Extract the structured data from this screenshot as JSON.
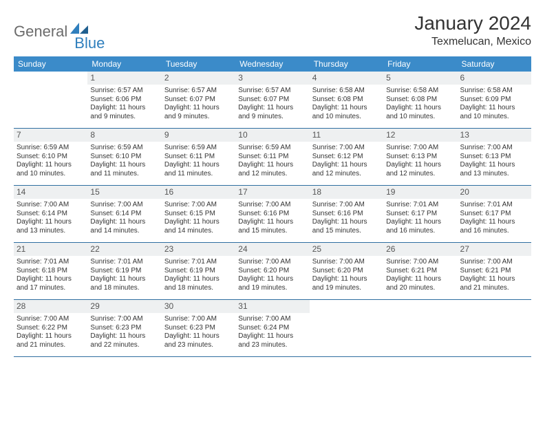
{
  "logo": {
    "text1": "General",
    "text2": "Blue"
  },
  "title": "January 2024",
  "location": "Texmelucan, Mexico",
  "colors": {
    "header_bg": "#3b8bc9",
    "rule": "#2e6ea0",
    "shade": "#eef0f1",
    "logo_gray": "#6b6b6b",
    "logo_blue": "#2f7fbd"
  },
  "dow": [
    "Sunday",
    "Monday",
    "Tuesday",
    "Wednesday",
    "Thursday",
    "Friday",
    "Saturday"
  ],
  "weeks": [
    [
      {
        "n": "",
        "sr": "",
        "ss": "",
        "d1": "",
        "d2": ""
      },
      {
        "n": "1",
        "sr": "Sunrise: 6:57 AM",
        "ss": "Sunset: 6:06 PM",
        "d1": "Daylight: 11 hours",
        "d2": "and 9 minutes."
      },
      {
        "n": "2",
        "sr": "Sunrise: 6:57 AM",
        "ss": "Sunset: 6:07 PM",
        "d1": "Daylight: 11 hours",
        "d2": "and 9 minutes."
      },
      {
        "n": "3",
        "sr": "Sunrise: 6:57 AM",
        "ss": "Sunset: 6:07 PM",
        "d1": "Daylight: 11 hours",
        "d2": "and 9 minutes."
      },
      {
        "n": "4",
        "sr": "Sunrise: 6:58 AM",
        "ss": "Sunset: 6:08 PM",
        "d1": "Daylight: 11 hours",
        "d2": "and 10 minutes."
      },
      {
        "n": "5",
        "sr": "Sunrise: 6:58 AM",
        "ss": "Sunset: 6:08 PM",
        "d1": "Daylight: 11 hours",
        "d2": "and 10 minutes."
      },
      {
        "n": "6",
        "sr": "Sunrise: 6:58 AM",
        "ss": "Sunset: 6:09 PM",
        "d1": "Daylight: 11 hours",
        "d2": "and 10 minutes."
      }
    ],
    [
      {
        "n": "7",
        "sr": "Sunrise: 6:59 AM",
        "ss": "Sunset: 6:10 PM",
        "d1": "Daylight: 11 hours",
        "d2": "and 10 minutes."
      },
      {
        "n": "8",
        "sr": "Sunrise: 6:59 AM",
        "ss": "Sunset: 6:10 PM",
        "d1": "Daylight: 11 hours",
        "d2": "and 11 minutes."
      },
      {
        "n": "9",
        "sr": "Sunrise: 6:59 AM",
        "ss": "Sunset: 6:11 PM",
        "d1": "Daylight: 11 hours",
        "d2": "and 11 minutes."
      },
      {
        "n": "10",
        "sr": "Sunrise: 6:59 AM",
        "ss": "Sunset: 6:11 PM",
        "d1": "Daylight: 11 hours",
        "d2": "and 12 minutes."
      },
      {
        "n": "11",
        "sr": "Sunrise: 7:00 AM",
        "ss": "Sunset: 6:12 PM",
        "d1": "Daylight: 11 hours",
        "d2": "and 12 minutes."
      },
      {
        "n": "12",
        "sr": "Sunrise: 7:00 AM",
        "ss": "Sunset: 6:13 PM",
        "d1": "Daylight: 11 hours",
        "d2": "and 12 minutes."
      },
      {
        "n": "13",
        "sr": "Sunrise: 7:00 AM",
        "ss": "Sunset: 6:13 PM",
        "d1": "Daylight: 11 hours",
        "d2": "and 13 minutes."
      }
    ],
    [
      {
        "n": "14",
        "sr": "Sunrise: 7:00 AM",
        "ss": "Sunset: 6:14 PM",
        "d1": "Daylight: 11 hours",
        "d2": "and 13 minutes."
      },
      {
        "n": "15",
        "sr": "Sunrise: 7:00 AM",
        "ss": "Sunset: 6:14 PM",
        "d1": "Daylight: 11 hours",
        "d2": "and 14 minutes."
      },
      {
        "n": "16",
        "sr": "Sunrise: 7:00 AM",
        "ss": "Sunset: 6:15 PM",
        "d1": "Daylight: 11 hours",
        "d2": "and 14 minutes."
      },
      {
        "n": "17",
        "sr": "Sunrise: 7:00 AM",
        "ss": "Sunset: 6:16 PM",
        "d1": "Daylight: 11 hours",
        "d2": "and 15 minutes."
      },
      {
        "n": "18",
        "sr": "Sunrise: 7:00 AM",
        "ss": "Sunset: 6:16 PM",
        "d1": "Daylight: 11 hours",
        "d2": "and 15 minutes."
      },
      {
        "n": "19",
        "sr": "Sunrise: 7:01 AM",
        "ss": "Sunset: 6:17 PM",
        "d1": "Daylight: 11 hours",
        "d2": "and 16 minutes."
      },
      {
        "n": "20",
        "sr": "Sunrise: 7:01 AM",
        "ss": "Sunset: 6:17 PM",
        "d1": "Daylight: 11 hours",
        "d2": "and 16 minutes."
      }
    ],
    [
      {
        "n": "21",
        "sr": "Sunrise: 7:01 AM",
        "ss": "Sunset: 6:18 PM",
        "d1": "Daylight: 11 hours",
        "d2": "and 17 minutes."
      },
      {
        "n": "22",
        "sr": "Sunrise: 7:01 AM",
        "ss": "Sunset: 6:19 PM",
        "d1": "Daylight: 11 hours",
        "d2": "and 18 minutes."
      },
      {
        "n": "23",
        "sr": "Sunrise: 7:01 AM",
        "ss": "Sunset: 6:19 PM",
        "d1": "Daylight: 11 hours",
        "d2": "and 18 minutes."
      },
      {
        "n": "24",
        "sr": "Sunrise: 7:00 AM",
        "ss": "Sunset: 6:20 PM",
        "d1": "Daylight: 11 hours",
        "d2": "and 19 minutes."
      },
      {
        "n": "25",
        "sr": "Sunrise: 7:00 AM",
        "ss": "Sunset: 6:20 PM",
        "d1": "Daylight: 11 hours",
        "d2": "and 19 minutes."
      },
      {
        "n": "26",
        "sr": "Sunrise: 7:00 AM",
        "ss": "Sunset: 6:21 PM",
        "d1": "Daylight: 11 hours",
        "d2": "and 20 minutes."
      },
      {
        "n": "27",
        "sr": "Sunrise: 7:00 AM",
        "ss": "Sunset: 6:21 PM",
        "d1": "Daylight: 11 hours",
        "d2": "and 21 minutes."
      }
    ],
    [
      {
        "n": "28",
        "sr": "Sunrise: 7:00 AM",
        "ss": "Sunset: 6:22 PM",
        "d1": "Daylight: 11 hours",
        "d2": "and 21 minutes."
      },
      {
        "n": "29",
        "sr": "Sunrise: 7:00 AM",
        "ss": "Sunset: 6:23 PM",
        "d1": "Daylight: 11 hours",
        "d2": "and 22 minutes."
      },
      {
        "n": "30",
        "sr": "Sunrise: 7:00 AM",
        "ss": "Sunset: 6:23 PM",
        "d1": "Daylight: 11 hours",
        "d2": "and 23 minutes."
      },
      {
        "n": "31",
        "sr": "Sunrise: 7:00 AM",
        "ss": "Sunset: 6:24 PM",
        "d1": "Daylight: 11 hours",
        "d2": "and 23 minutes."
      },
      {
        "n": "",
        "sr": "",
        "ss": "",
        "d1": "",
        "d2": ""
      },
      {
        "n": "",
        "sr": "",
        "ss": "",
        "d1": "",
        "d2": ""
      },
      {
        "n": "",
        "sr": "",
        "ss": "",
        "d1": "",
        "d2": ""
      }
    ]
  ]
}
